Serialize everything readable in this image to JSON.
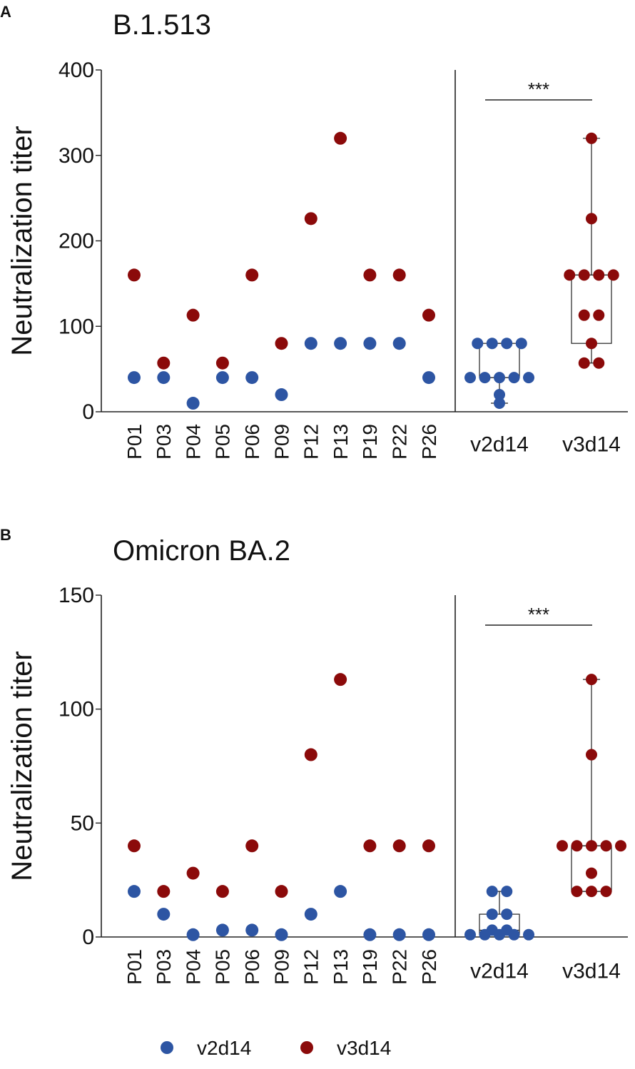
{
  "colors": {
    "v2d14": "#2D55A3",
    "v3d14": "#8B0A0A",
    "axis": "#222222"
  },
  "chart_data": [
    {
      "type": "scatter",
      "panel_label": "A",
      "title": "B.1.513",
      "ylabel": "Neutralization titer",
      "ylim": [
        0,
        400
      ],
      "yticks": [
        "0",
        "100",
        "200",
        "300",
        "400"
      ],
      "ytick_values": [
        0,
        100,
        200,
        300,
        400
      ],
      "categories": [
        "P01",
        "P03",
        "P04",
        "P05",
        "P06",
        "P09",
        "P12",
        "P13",
        "P19",
        "P22",
        "P26"
      ],
      "series": [
        {
          "name": "v2d14",
          "values": [
            40,
            40,
            10,
            40,
            40,
            20,
            80,
            80,
            80,
            80,
            40
          ]
        },
        {
          "name": "v3d14",
          "values": [
            160,
            57,
            113,
            57,
            160,
            80,
            226,
            320,
            160,
            160,
            113
          ]
        }
      ],
      "summary": {
        "groups": [
          "v2d14",
          "v3d14"
        ],
        "significance": "***",
        "boxes": [
          {
            "name": "v2d14",
            "min": 10,
            "q1": 40,
            "median": 40,
            "q3": 80,
            "max": 80
          },
          {
            "name": "v3d14",
            "min": 57,
            "q1": 80,
            "median": 160,
            "q3": 160,
            "max": 320
          }
        ]
      }
    },
    {
      "type": "scatter",
      "panel_label": "B",
      "title": "Omicron BA.2",
      "ylabel": "Neutralization titer",
      "ylim": [
        0,
        150
      ],
      "yticks": [
        "0",
        "50",
        "100",
        "150"
      ],
      "ytick_values": [
        0,
        50,
        100,
        150
      ],
      "categories": [
        "P01",
        "P03",
        "P04",
        "P05",
        "P06",
        "P09",
        "P12",
        "P13",
        "P19",
        "P22",
        "P26"
      ],
      "series": [
        {
          "name": "v2d14",
          "values": [
            20,
            10,
            1,
            3,
            3,
            1,
            10,
            20,
            1,
            1,
            1
          ]
        },
        {
          "name": "v3d14",
          "values": [
            40,
            20,
            28,
            20,
            40,
            20,
            80,
            113,
            40,
            40,
            40
          ]
        }
      ],
      "summary": {
        "groups": [
          "v2d14",
          "v3d14"
        ],
        "significance": "***",
        "boxes": [
          {
            "name": "v2d14",
            "min": 1,
            "q1": 1,
            "median": 3,
            "q3": 10,
            "max": 20
          },
          {
            "name": "v3d14",
            "min": 20,
            "q1": 20,
            "median": 40,
            "q3": 40,
            "max": 113
          }
        ]
      }
    }
  ],
  "legend": [
    {
      "label": "v2d14",
      "color": "#2D55A3"
    },
    {
      "label": "v3d14",
      "color": "#8B0A0A"
    }
  ]
}
